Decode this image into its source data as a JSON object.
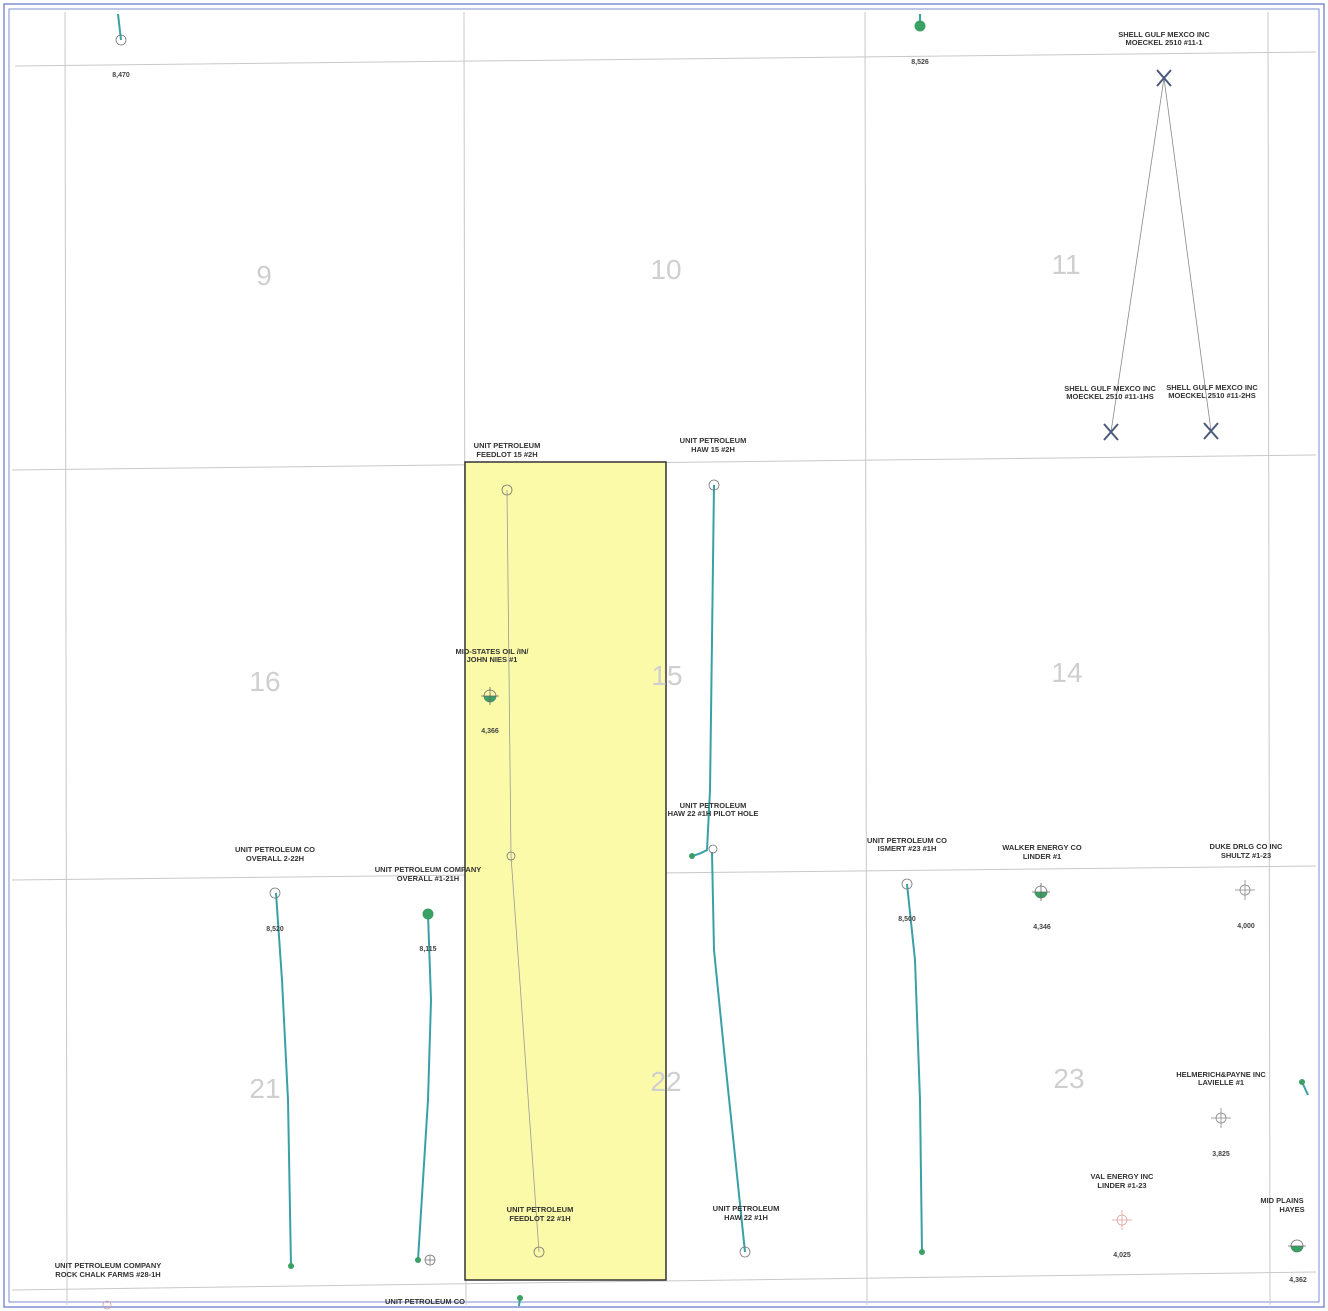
{
  "colors": {
    "frame": "#7f8fd0",
    "grid": "#c8c8c8",
    "section_text": "#cfcfcf",
    "highlight_fill": "#fafaa8",
    "highlight_stroke": "#333333",
    "wellbore": "#3aa0a8",
    "oil_green": "#3ba063",
    "label_text": "#333333"
  },
  "sections": [
    "9",
    "10",
    "11",
    "16",
    "15",
    "14",
    "21",
    "22",
    "23"
  ],
  "wells": {
    "top_left_depth": "8,470",
    "top_mid_depth": "8,526",
    "moeckel_11_1": [
      "SHELL GULF MEXCO INC",
      "MOECKEL 2510 #11-1"
    ],
    "moeckel_11_1hs": [
      "SHELL GULF MEXCO INC",
      "MOECKEL 2510 #11-1HS"
    ],
    "moeckel_11_2hs": [
      "SHELL GULF MEXCO INC",
      "MOECKEL 2510 #11-2HS"
    ],
    "feedlot_15_2h": [
      "UNIT PETROLEUM",
      "FEEDLOT 15 #2H"
    ],
    "haw_15_2h": [
      "UNIT PETROLEUM",
      "HAW 15 #2H"
    ],
    "john_nies": [
      "MID-STATES OIL /IN/",
      "JOHN NIES #1"
    ],
    "john_nies_depth": "4,366",
    "haw_22_pilot": [
      "UNIT PETROLEUM",
      "HAW 22 #1H PILOT HOLE"
    ],
    "overall_2_22h": [
      "UNIT PETROLEUM CO",
      "OVERALL 2-22H"
    ],
    "overall_2_22h_depth": "8,520",
    "overall_1_21h": [
      "UNIT PETROLEUM COMPANY",
      "OVERALL #1-21H"
    ],
    "overall_1_21h_depth": "8,115",
    "ismert": [
      "UNIT PETROLEUM CO",
      "ISMERT #23 #1H"
    ],
    "ismert_depth": "8,500",
    "linder_1": [
      "WALKER ENERGY CO",
      "LINDER #1"
    ],
    "linder_1_depth": "4,346",
    "shultz": [
      "DUKE DRLG CO INC",
      "SHULTZ #1-23"
    ],
    "shultz_depth": "4,000",
    "lavielle": [
      "HELMERICH&PAYNE INC",
      "LAVIELLE #1"
    ],
    "lavielle_depth": "3,825",
    "linder_1_23": [
      "VAL ENERGY INC",
      "LINDER #1-23"
    ],
    "linder_1_23_depth": "4,025",
    "hayes": [
      "MID PLAINS",
      "HAYES"
    ],
    "hayes_depth": "4,362",
    "feedlot_22_1h": [
      "UNIT PETROLEUM",
      "FEEDLOT 22 #1H"
    ],
    "haw_22_1h": [
      "UNIT PETROLEUM",
      "HAW 22 #1H"
    ],
    "rock_chalk": [
      "UNIT PETROLEUM COMPANY",
      "ROCK CHALK FARMS #28-1H"
    ],
    "bottom_partial": [
      "UNIT PETROLEUM CO"
    ]
  }
}
